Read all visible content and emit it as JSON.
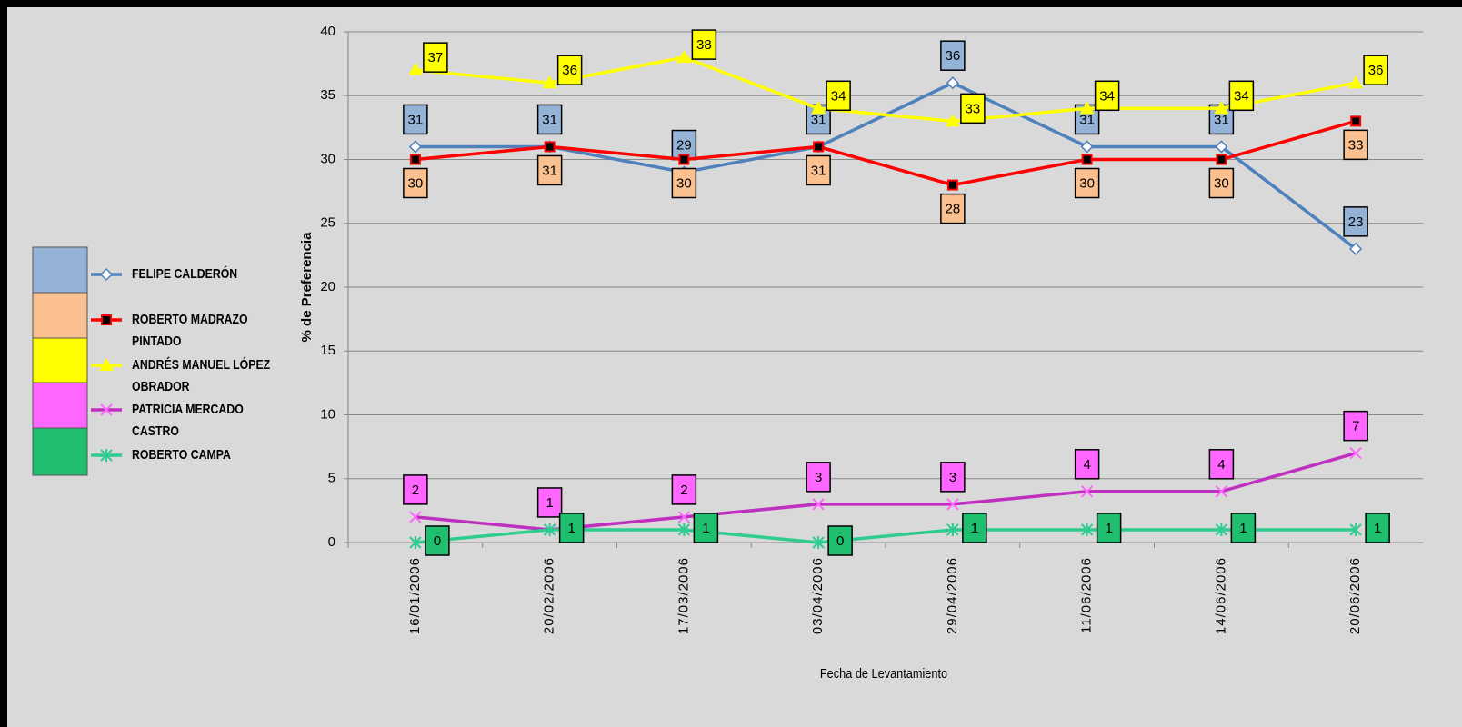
{
  "chart_data": {
    "type": "line",
    "x": [
      "16/01/2006",
      "20/02/2006",
      "17/03/2006",
      "03/04/2006",
      "29/04/2006",
      "11/06/2006",
      "14/06/2006",
      "20/06/2006"
    ],
    "series": [
      {
        "name": "FELIPE CALDERÓN",
        "color": "#4f81bd",
        "label_color": "#95b3d7",
        "marker": "diamond",
        "values": [
          31,
          31,
          29,
          31,
          36,
          31,
          31,
          23
        ]
      },
      {
        "name": "ROBERTO MADRAZO PINTADO",
        "color": "#ff0000",
        "label_color": "#fac090",
        "marker": "square",
        "values": [
          30,
          31,
          30,
          31,
          28,
          30,
          30,
          33
        ]
      },
      {
        "name": "ANDRÉS MANUEL LÓPEZ OBRADOR",
        "color": "#ffff00",
        "label_color": "#ffff00",
        "marker": "triangle",
        "values": [
          37,
          36,
          38,
          34,
          33,
          34,
          34,
          36
        ]
      },
      {
        "name": "PATRICIA MERCADO CASTRO",
        "color": "#c030c0",
        "label_color": "#ff66ff",
        "marker": "x",
        "values": [
          2,
          1,
          2,
          3,
          3,
          4,
          4,
          7
        ]
      },
      {
        "name": "ROBERTO CAMPA",
        "color": "#2ecc8f",
        "label_color": "#1fbf6f",
        "marker": "star",
        "values": [
          0,
          1,
          1,
          0,
          1,
          1,
          1,
          1
        ]
      }
    ],
    "ylim": [
      0,
      40
    ],
    "yticks": [
      0,
      5,
      10,
      15,
      20,
      25,
      30,
      35,
      40
    ],
    "grid": true,
    "ylabel": "% de Preferencia",
    "xlabel": "Fecha de Levantamiento"
  }
}
